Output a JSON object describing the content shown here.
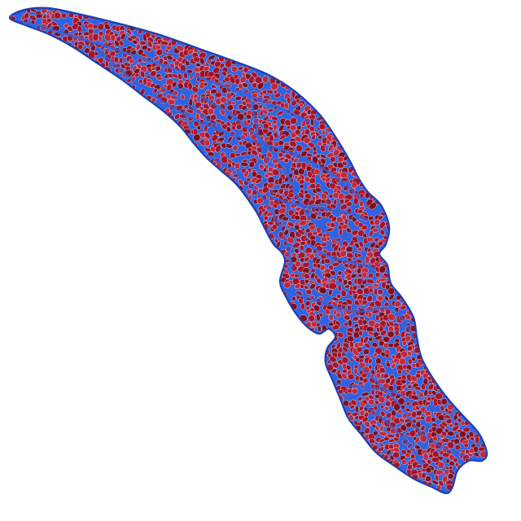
{
  "image": {
    "subject": "trichrome-stained-muscle-tissue-section",
    "background_color": "#ffffff",
    "colors": {
      "muscle": "#a3142a",
      "muscle_dark": "#7e0f21",
      "muscle_light": "#c0283c",
      "collagen": "#2f62e0",
      "collagen_dark": "#1c3fb0",
      "collagen_light": "#6d98f2",
      "fiber_outline": "#e9d6de"
    }
  }
}
